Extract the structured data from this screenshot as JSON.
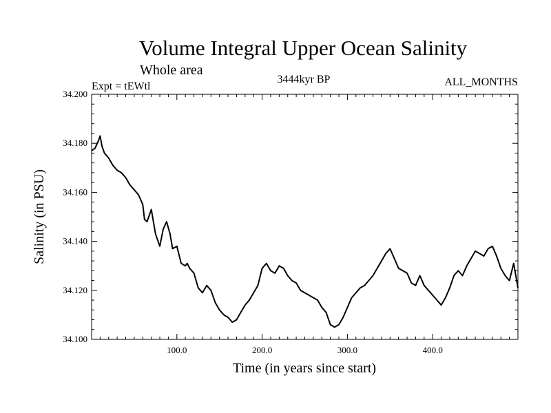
{
  "chart_data": {
    "type": "line",
    "title": "Volume Integral Upper Ocean Salinity",
    "subtitle": "Whole area",
    "experiment_label": "Expt = tEWtl",
    "period_label": "3444kyr BP",
    "months_label": "ALL_MONTHS",
    "xlabel": "Time (in years since start)",
    "ylabel": "Salinity (in PSU)",
    "xlim": [
      0,
      500
    ],
    "ylim": [
      34.1,
      34.2
    ],
    "x_ticks": [
      {
        "value": 100,
        "label": "100.0"
      },
      {
        "value": 200,
        "label": "200.0"
      },
      {
        "value": 300,
        "label": "300.0"
      },
      {
        "value": 400,
        "label": "400.0"
      }
    ],
    "y_ticks": [
      {
        "value": 34.1,
        "label": "34.100"
      },
      {
        "value": 34.12,
        "label": "34.120"
      },
      {
        "value": 34.14,
        "label": "34.140"
      },
      {
        "value": 34.16,
        "label": "34.160"
      },
      {
        "value": 34.18,
        "label": "34.180"
      },
      {
        "value": 34.2,
        "label": "34.200"
      }
    ],
    "series": [
      {
        "name": "Salinity",
        "color": "#000000",
        "x": [
          0,
          4,
          8,
          10,
          12,
          15,
          20,
          25,
          30,
          35,
          40,
          45,
          50,
          55,
          60,
          62,
          65,
          68,
          70,
          75,
          80,
          84,
          88,
          92,
          95,
          100,
          105,
          110,
          112,
          115,
          120,
          125,
          130,
          135,
          140,
          145,
          150,
          155,
          160,
          165,
          170,
          175,
          180,
          185,
          190,
          195,
          200,
          205,
          210,
          215,
          220,
          225,
          230,
          235,
          240,
          245,
          250,
          255,
          260,
          265,
          270,
          275,
          280,
          285,
          290,
          295,
          300,
          305,
          310,
          315,
          320,
          325,
          330,
          335,
          340,
          345,
          350,
          355,
          360,
          365,
          370,
          375,
          380,
          385,
          390,
          395,
          400,
          405,
          410,
          415,
          420,
          425,
          430,
          435,
          440,
          445,
          450,
          455,
          460,
          465,
          470,
          475,
          480,
          485,
          490,
          495,
          500
        ],
        "values": [
          34.177,
          34.178,
          34.181,
          34.183,
          34.179,
          34.176,
          34.174,
          34.171,
          34.169,
          34.168,
          34.166,
          34.163,
          34.161,
          34.159,
          34.155,
          34.149,
          34.148,
          34.151,
          34.153,
          34.143,
          34.138,
          34.145,
          34.148,
          34.143,
          34.137,
          34.138,
          34.131,
          34.13,
          34.131,
          34.129,
          34.127,
          34.121,
          34.119,
          34.122,
          34.12,
          34.115,
          34.112,
          34.11,
          34.109,
          34.107,
          34.108,
          34.111,
          34.114,
          34.116,
          34.119,
          34.122,
          34.129,
          34.131,
          34.128,
          34.127,
          34.13,
          34.129,
          34.126,
          34.124,
          34.123,
          34.12,
          34.119,
          34.118,
          34.117,
          34.116,
          34.113,
          34.111,
          34.106,
          34.105,
          34.106,
          34.109,
          34.113,
          34.117,
          34.119,
          34.121,
          34.122,
          34.124,
          34.126,
          34.129,
          34.132,
          34.135,
          34.137,
          34.133,
          34.129,
          34.128,
          34.127,
          34.123,
          34.122,
          34.126,
          34.122,
          34.12,
          34.118,
          34.116,
          34.114,
          34.117,
          34.121,
          34.126,
          34.128,
          34.126,
          34.13,
          34.133,
          34.136,
          34.135,
          34.134,
          34.137,
          34.138,
          34.134,
          34.129,
          34.126,
          34.124,
          34.131,
          34.121
        ]
      }
    ]
  }
}
